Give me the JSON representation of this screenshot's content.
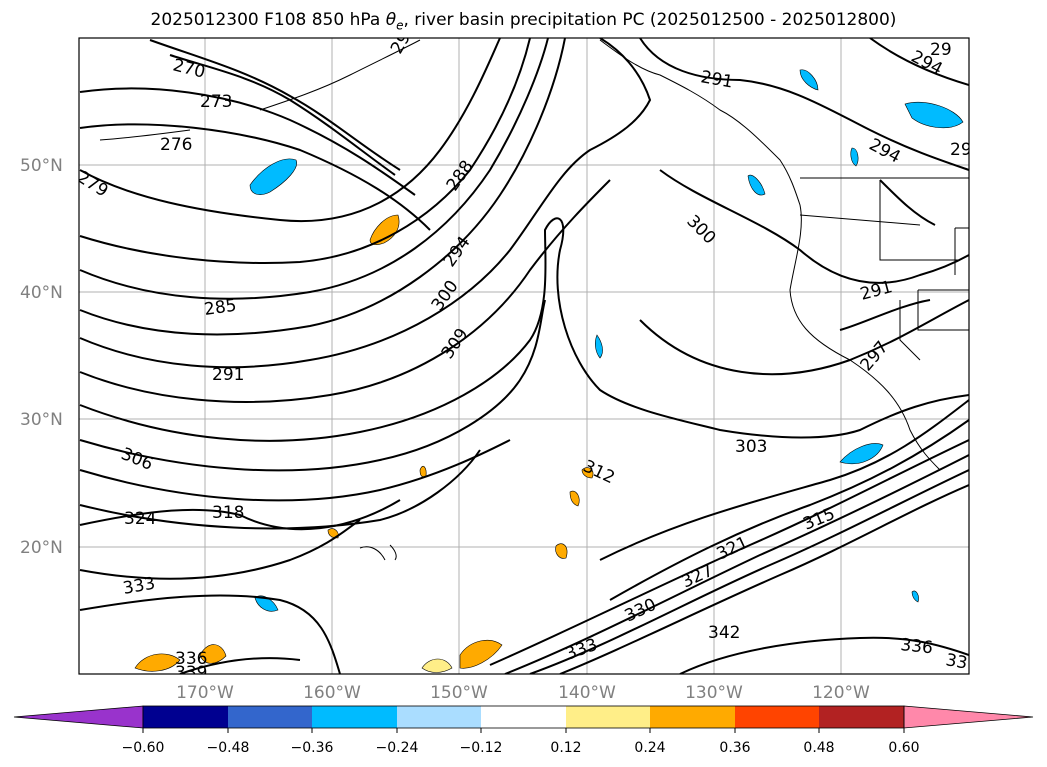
{
  "title_main": "2025012300 F108 850 hPa",
  "title_symbol": "θ",
  "title_sub": "e",
  "title_rest": ", river basin precipitation PC (2025012500 - 2025012800)",
  "lat_labels": [
    "50°N",
    "40°N",
    "30°N",
    "20°N"
  ],
  "lon_labels": [
    "170°W",
    "160°W",
    "150°W",
    "140°W",
    "130°W",
    "120°W"
  ],
  "contour_labels": [
    "270",
    "273",
    "276",
    "279",
    "285",
    "291",
    "288",
    "294",
    "300",
    "309",
    "306",
    "324",
    "318",
    "333",
    "336",
    "339",
    "330",
    "333",
    "321",
    "327",
    "315",
    "342",
    "336",
    "33",
    "312",
    "303",
    "300",
    "291",
    "291",
    "297",
    "294",
    "294",
    "29",
    "29",
    "29"
  ],
  "colorbar": {
    "colors": [
      "#9933cc",
      "#000090",
      "#3366cc",
      "#00bbff",
      "#aaddff",
      "#ffffff",
      "#ffee88",
      "#ffaa00",
      "#ff4400",
      "#b22222",
      "#ff88aa"
    ],
    "ticks": [
      "−0.60",
      "−0.48",
      "−0.36",
      "−0.24",
      "−0.12",
      "0.12",
      "0.24",
      "0.36",
      "0.48",
      "0.60"
    ]
  }
}
